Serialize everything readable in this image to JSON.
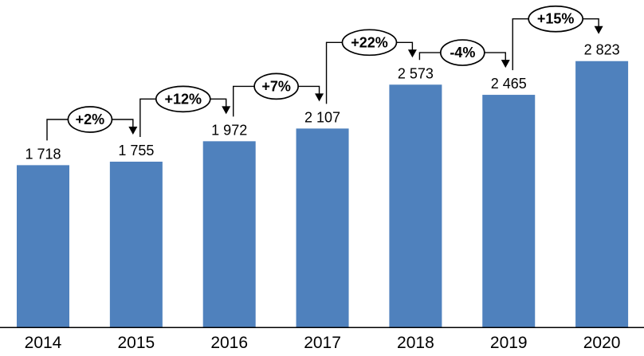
{
  "page": {
    "background": "#FFFFFF"
  },
  "chart_data": {
    "type": "bar",
    "title": "",
    "xlabel": "",
    "ylabel": "",
    "categories": [
      "2014",
      "2015",
      "2016",
      "2017",
      "2018",
      "2019",
      "2020"
    ],
    "values": [
      1718,
      1755,
      1972,
      2107,
      2573,
      2465,
      2823
    ],
    "value_labels": [
      "1 718",
      "1 755",
      "1 972",
      "2 107",
      "2 573",
      "2 465",
      "2 823"
    ],
    "change_annotations": [
      "+2%",
      "+12%",
      "+7%",
      "+22%",
      "-4%",
      "+15%"
    ],
    "ylim": [
      0,
      3000
    ],
    "grid": false,
    "legend": false,
    "bar_color": "#4F81BD",
    "axis_line_color": "#000000",
    "connector_color": "#000000",
    "annotation_fill": "#FFFFFF",
    "annotation_outline_color": "#000000",
    "text_color": "#000000"
  }
}
